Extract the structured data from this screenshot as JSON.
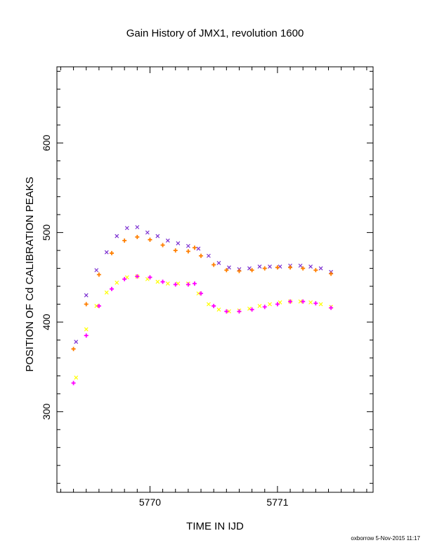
{
  "chart_data": {
    "type": "scatter",
    "title": "Gain History of JMX1, revolution 1600",
    "xlabel": "TIME IN IJD",
    "ylabel": "POSITION OF Cd CALIBRATION PEAKS",
    "xlim": [
      5769.27,
      5771.75
    ],
    "ylim": [
      210,
      685
    ],
    "x_ticks": [
      "5770",
      "5771"
    ],
    "y_ticks": [
      "300",
      "400",
      "500",
      "600"
    ],
    "x_tick_values": [
      5770,
      5771
    ],
    "y_tick_values": [
      300,
      400,
      500,
      600
    ],
    "grid": false,
    "legend": "none",
    "series": [
      {
        "marker": "x",
        "color": "#7b2fd0",
        "x": [
          5769.42,
          5769.5,
          5769.58,
          5769.66,
          5769.74,
          5769.82,
          5769.9,
          5769.98,
          5770.06,
          5770.14,
          5770.22,
          5770.3,
          5770.38,
          5770.46,
          5770.54,
          5770.62,
          5770.7,
          5770.78,
          5770.86,
          5770.94,
          5771.02,
          5771.1,
          5771.18,
          5771.26,
          5771.34,
          5771.42
        ],
        "y": [
          378,
          430,
          458,
          478,
          496,
          505,
          506,
          500,
          496,
          491,
          488,
          485,
          482,
          474,
          466,
          461,
          459,
          460,
          462,
          462,
          462,
          463,
          463,
          462,
          460,
          456
        ]
      },
      {
        "marker": "x",
        "color": "#ffff00",
        "x": [
          5769.42,
          5769.5,
          5769.58,
          5769.66,
          5769.74,
          5769.82,
          5769.9,
          5769.98,
          5770.06,
          5770.14,
          5770.22,
          5770.3,
          5770.38,
          5770.46,
          5770.54,
          5770.62,
          5770.7,
          5770.78,
          5770.86,
          5770.94,
          5771.02,
          5771.1,
          5771.18,
          5771.26,
          5771.34,
          5771.42
        ],
        "y": [
          338,
          392,
          418,
          433,
          444,
          450,
          451,
          448,
          445,
          443,
          443,
          443,
          432,
          420,
          414,
          412,
          413,
          415,
          418,
          420,
          422,
          423,
          423,
          422,
          420,
          417
        ]
      },
      {
        "marker": "+",
        "color": "#ff7f00",
        "x": [
          5769.4,
          5769.5,
          5769.6,
          5769.7,
          5769.8,
          5769.9,
          5770.0,
          5770.1,
          5770.2,
          5770.3,
          5770.35,
          5770.4,
          5770.5,
          5770.6,
          5770.7,
          5770.8,
          5770.9,
          5771.0,
          5771.1,
          5771.2,
          5771.3,
          5771.42
        ],
        "y": [
          370,
          420,
          453,
          477,
          491,
          495,
          492,
          486,
          480,
          479,
          483,
          474,
          464,
          458,
          457,
          458,
          460,
          461,
          461,
          460,
          458,
          454
        ]
      },
      {
        "marker": "+",
        "color": "#ff00ff",
        "x": [
          5769.4,
          5769.5,
          5769.6,
          5769.7,
          5769.8,
          5769.9,
          5770.0,
          5770.1,
          5770.2,
          5770.3,
          5770.35,
          5770.4,
          5770.5,
          5770.6,
          5770.7,
          5770.8,
          5770.9,
          5771.0,
          5771.1,
          5771.2,
          5771.3,
          5771.42
        ],
        "y": [
          332,
          385,
          418,
          437,
          448,
          451,
          450,
          445,
          442,
          442,
          443,
          432,
          418,
          412,
          412,
          414,
          417,
          420,
          423,
          423,
          421,
          416
        ]
      }
    ]
  },
  "footer": {
    "credit": "oxborrow  5-Nov-2015 11:17"
  }
}
